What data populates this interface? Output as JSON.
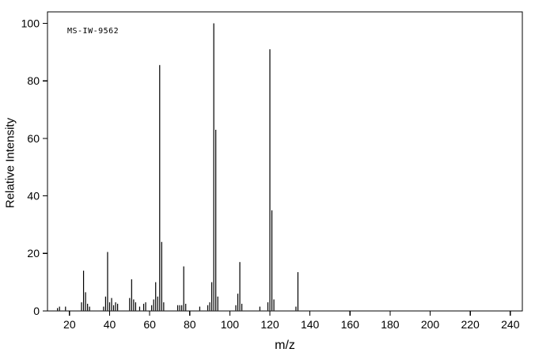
{
  "page": {
    "background": "#ffffff",
    "line_color": "#000000"
  },
  "chart_data": {
    "type": "bar",
    "subtype": "mass-spectrum",
    "annotation": "MS-IW-9562",
    "xlabel": "m/z",
    "ylabel": "Relative Intensity",
    "xlim": [
      9,
      246
    ],
    "ylim": [
      0,
      104
    ],
    "x_ticks": [
      20,
      40,
      60,
      80,
      100,
      120,
      140,
      160,
      180,
      200,
      220,
      240
    ],
    "y_ticks": [
      0,
      20,
      40,
      60,
      80,
      100
    ],
    "grid": false,
    "legend": false,
    "peaks": [
      [
        14,
        1.0
      ],
      [
        15,
        1.5
      ],
      [
        18,
        1.5
      ],
      [
        26,
        3.0
      ],
      [
        27,
        14.0
      ],
      [
        28,
        6.5
      ],
      [
        29,
        2.5
      ],
      [
        30,
        1.5
      ],
      [
        37,
        1.5
      ],
      [
        38,
        5.0
      ],
      [
        39,
        20.5
      ],
      [
        40,
        3.0
      ],
      [
        41,
        4.5
      ],
      [
        42,
        2.0
      ],
      [
        43,
        3.0
      ],
      [
        44,
        2.5
      ],
      [
        50,
        4.5
      ],
      [
        51,
        11.0
      ],
      [
        52,
        4.0
      ],
      [
        53,
        3.0
      ],
      [
        55,
        1.5
      ],
      [
        57,
        2.5
      ],
      [
        58,
        3.0
      ],
      [
        61,
        2.0
      ],
      [
        62,
        4.0
      ],
      [
        63,
        10.0
      ],
      [
        64,
        5.0
      ],
      [
        65,
        85.5
      ],
      [
        66,
        24.0
      ],
      [
        67,
        3.0
      ],
      [
        74,
        2.0
      ],
      [
        75,
        2.0
      ],
      [
        76,
        2.0
      ],
      [
        77,
        15.5
      ],
      [
        78,
        2.5
      ],
      [
        85,
        1.5
      ],
      [
        89,
        2.0
      ],
      [
        90,
        3.0
      ],
      [
        91,
        10.0
      ],
      [
        92,
        100.0
      ],
      [
        93,
        63.0
      ],
      [
        94,
        5.0
      ],
      [
        103,
        2.0
      ],
      [
        104,
        6.0
      ],
      [
        105,
        17.0
      ],
      [
        106,
        2.5
      ],
      [
        115,
        1.5
      ],
      [
        119,
        3.0
      ],
      [
        120,
        91.0
      ],
      [
        121,
        35.0
      ],
      [
        122,
        4.0
      ],
      [
        133,
        1.5
      ],
      [
        134,
        13.5
      ]
    ]
  }
}
